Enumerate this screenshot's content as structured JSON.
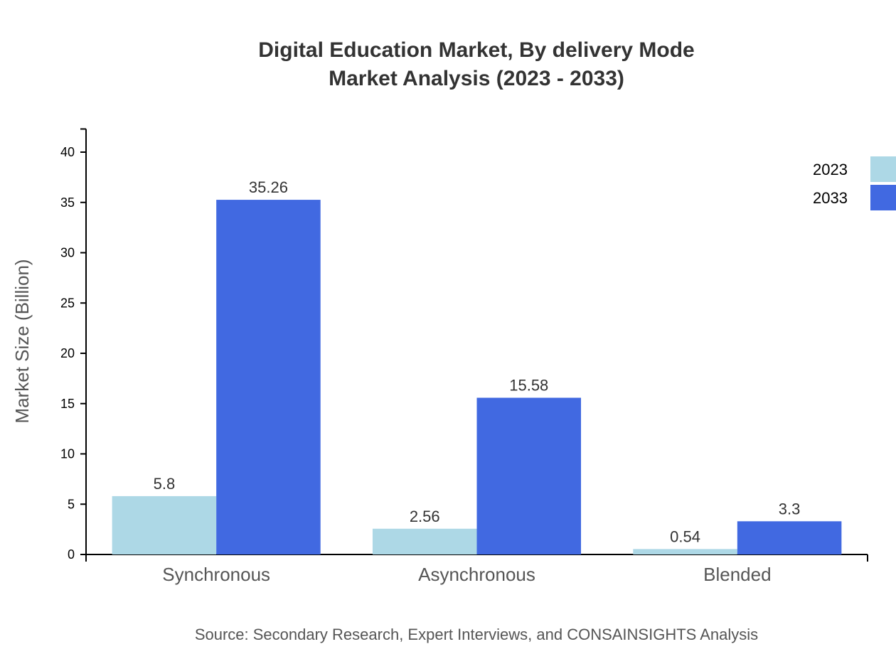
{
  "chart_data": {
    "type": "bar",
    "title": "Digital Education Market, By delivery Mode",
    "subtitle": "Market Analysis (2023 - 2033)",
    "xlabel": "",
    "ylabel": "Market Size (Billion)",
    "categories": [
      "Synchronous",
      "Asynchronous",
      "Blended"
    ],
    "series": [
      {
        "name": "2023",
        "values": [
          5.8,
          2.56,
          0.54
        ],
        "color": "#ADD8E6"
      },
      {
        "name": "2033",
        "values": [
          35.26,
          15.58,
          3.3
        ],
        "color": "#4169E1"
      }
    ],
    "ylim": [
      0,
      42.3
    ],
    "yticks": [
      0,
      5,
      10,
      15,
      20,
      25,
      30,
      35,
      40
    ],
    "grid": false,
    "legend": "top-right",
    "source": "Source: Secondary Research, Expert Interviews, and CONSAINSIGHTS Analysis"
  }
}
